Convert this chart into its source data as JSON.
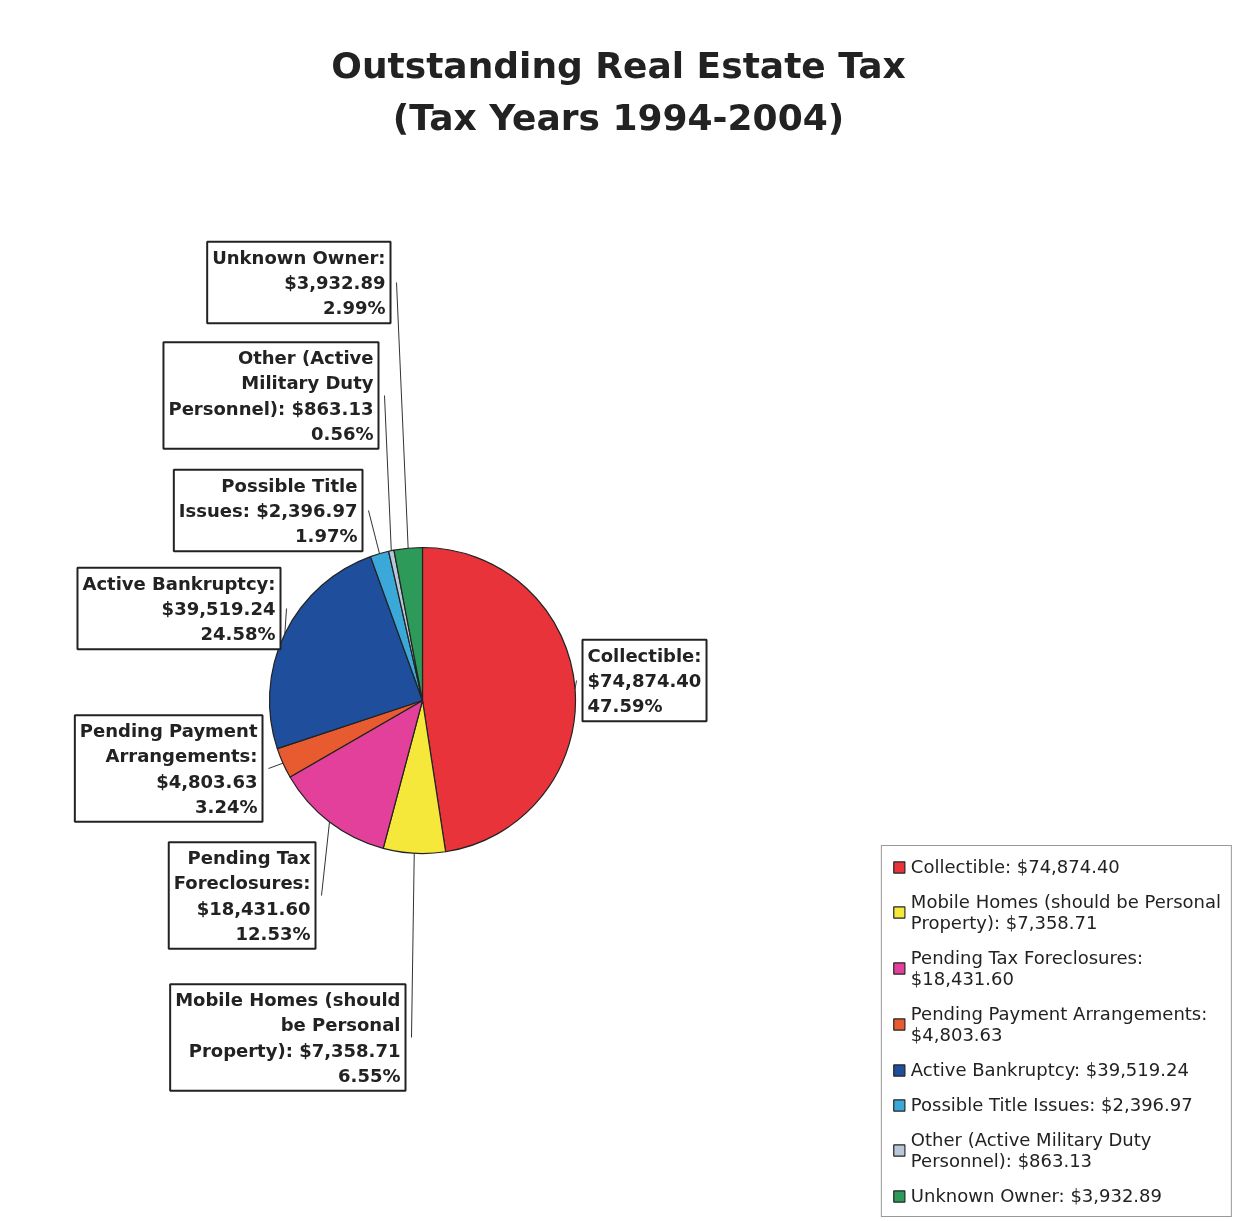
{
  "chart_data": {
    "type": "pie",
    "title": "Outstanding Real Estate Tax (Tax Years 1994-2004)",
    "categories": [
      "Collectible: $74,874.40",
      "Mobile Homes (should be Personal Property): $7,358.71",
      "Pending Tax Foreclosures: $18,431.60",
      "Pending Payment Arrangements: $4,803.63",
      "Active Bankruptcy: $39,519.24",
      "Possible Title Issues: $2,396.97",
      "Other (Active Military Duty Personnel): $863.13",
      "Unknown Owner: $3,932.89"
    ],
    "values": [
      47.59,
      6.55,
      12.53,
      3.24,
      24.58,
      1.97,
      0.56,
      2.99
    ],
    "value_labels": [
      "47.59%",
      "6.55%",
      "12.53%",
      "3.24%",
      "24.58%",
      "1.97%",
      "0.56%",
      "2.99%"
    ],
    "colors": [
      "#e8333a",
      "#f5e83a",
      "#e2409a",
      "#e85a30",
      "#1f4e9c",
      "#3aa8d8",
      "#b8c8d8",
      "#2e9a5a"
    ],
    "legend": "bottom right"
  }
}
